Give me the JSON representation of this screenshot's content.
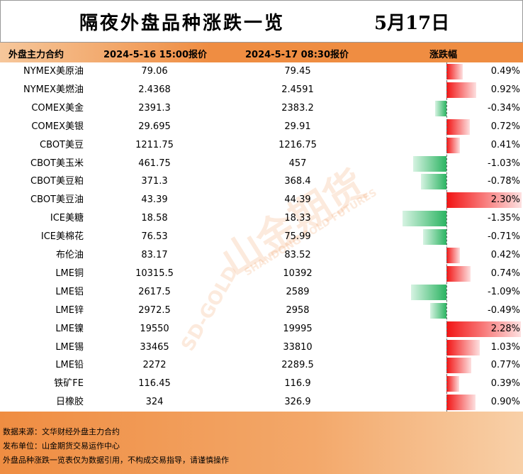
{
  "header": {
    "title": "隔夜外盘品种涨跌一览",
    "date": "5月17日"
  },
  "table": {
    "columns": [
      "外盘主力合约",
      "2024-5-16 15:00报价",
      "2024-5-17 08:30报价",
      "涨跌幅"
    ],
    "rows": [
      [
        "NYMEX美原油",
        "79.06",
        "79.45",
        {
          "value": 0.49,
          "label": "0.49%"
        }
      ],
      [
        "NYMEX美燃油",
        "2.4368",
        "2.4591",
        {
          "value": 0.92,
          "label": "0.92%"
        }
      ],
      [
        "COMEX美金",
        "2391.3",
        "2383.2",
        {
          "value": -0.34,
          "label": "-0.34%"
        }
      ],
      [
        "COMEX美银",
        "29.695",
        "29.91",
        {
          "value": 0.72,
          "label": "0.72%"
        }
      ],
      [
        "CBOT美豆",
        "1211.75",
        "1216.75",
        {
          "value": 0.41,
          "label": "0.41%"
        }
      ],
      [
        "CBOT美玉米",
        "461.75",
        "457",
        {
          "value": -1.03,
          "label": "-1.03%"
        }
      ],
      [
        "CBOT美豆粕",
        "371.3",
        "368.4",
        {
          "value": -0.78,
          "label": "-0.78%"
        }
      ],
      [
        "CBOT美豆油",
        "43.39",
        "44.39",
        {
          "value": 2.3,
          "label": "2.30%"
        }
      ],
      [
        "ICE美糖",
        "18.58",
        "18.33",
        {
          "value": -1.35,
          "label": "-1.35%"
        }
      ],
      [
        "ICE美棉花",
        "76.53",
        "75.99",
        {
          "value": -0.71,
          "label": "-0.71%"
        }
      ],
      [
        "布伦油",
        "83.17",
        "83.52",
        {
          "value": 0.42,
          "label": "0.42%"
        }
      ],
      [
        "LME铜",
        "10315.5",
        "10392",
        {
          "value": 0.74,
          "label": "0.74%"
        }
      ],
      [
        "LME铝",
        "2617.5",
        "2589",
        {
          "value": -1.09,
          "label": "-1.09%"
        }
      ],
      [
        "LME锌",
        "2972.5",
        "2958",
        {
          "value": -0.49,
          "label": "-0.49%"
        }
      ],
      [
        "LME镍",
        "19550",
        "19995",
        {
          "value": 2.28,
          "label": "2.28%"
        }
      ],
      [
        "LME锡",
        "33465",
        "33810",
        {
          "value": 1.03,
          "label": "1.03%"
        }
      ],
      [
        "LME铅",
        "2272",
        "2289.5",
        {
          "value": 0.77,
          "label": "0.77%"
        }
      ],
      [
        "铁矿FE",
        "116.45",
        "116.9",
        {
          "value": 0.39,
          "label": "0.39%"
        }
      ],
      [
        "日橡胶",
        "324",
        "326.9",
        {
          "value": 0.9,
          "label": "0.90%"
        }
      ]
    ]
  },
  "watermark": {
    "brand": "山金期货",
    "english": "SHANDONG GOLD FUTURES",
    "logo": "SD-GOLD"
  },
  "footer": {
    "lines": [
      "数据来源：文华财经外盘主力合约",
      "发布单位：山金期货交易运作中心",
      "外盘品种涨跌一览表仅为数据引用，不构成交易指导，请谨慎操作"
    ]
  }
}
